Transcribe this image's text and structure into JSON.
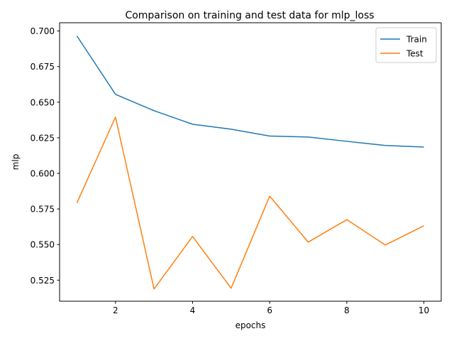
{
  "chart_data": {
    "type": "line",
    "title": "Comparison on training and test data for mlp_loss",
    "xlabel": "epochs",
    "ylabel": "mlp",
    "x": [
      1,
      2,
      3,
      4,
      5,
      6,
      7,
      8,
      9,
      10
    ],
    "xlim": [
      0.55,
      10.45
    ],
    "ylim": [
      0.5102,
      0.7058
    ],
    "x_ticks": [
      2,
      4,
      6,
      8,
      10
    ],
    "y_ticks": [
      0.525,
      0.55,
      0.575,
      0.6,
      0.625,
      0.65,
      0.675,
      0.7
    ],
    "x_tick_labels": [
      "2",
      "4",
      "6",
      "8",
      "10"
    ],
    "y_tick_labels": [
      "0.525",
      "0.550",
      "0.575",
      "0.600",
      "0.625",
      "0.650",
      "0.675",
      "0.700"
    ],
    "grid": false,
    "legend_position": "top-right",
    "series": [
      {
        "name": "Train",
        "color": "#1f77b4",
        "values": [
          0.6965,
          0.6555,
          0.644,
          0.6345,
          0.631,
          0.6262,
          0.6255,
          0.6225,
          0.6196,
          0.6185
        ]
      },
      {
        "name": "Test",
        "color": "#ff7f0e",
        "values": [
          0.5793,
          0.6395,
          0.5188,
          0.5557,
          0.5193,
          0.584,
          0.5517,
          0.5675,
          0.5497,
          0.5632
        ]
      }
    ]
  }
}
